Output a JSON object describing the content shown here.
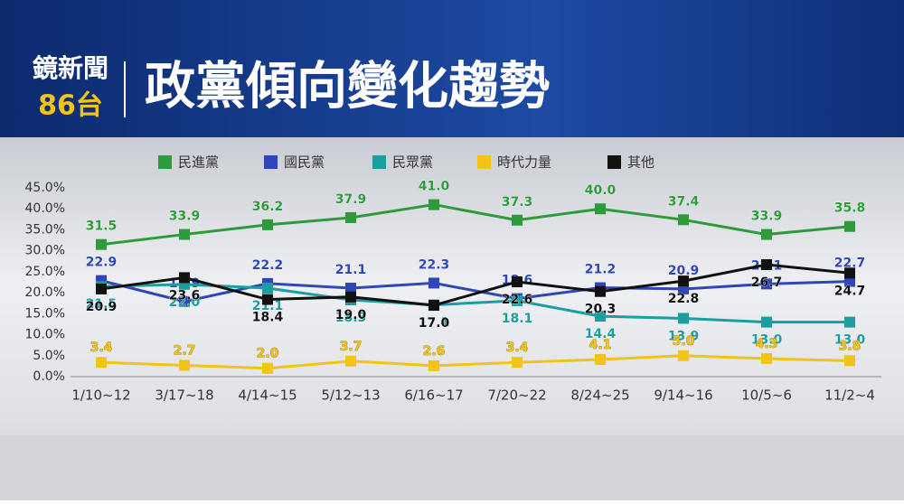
{
  "header": {
    "logo_line1": "鏡新聞",
    "logo_line2": "86台"
  },
  "chart_data": {
    "type": "line",
    "title": "政黨傾向變化趨勢",
    "categories": [
      "1/10~12",
      "3/17~18",
      "4/14~15",
      "5/12~13",
      "6/16~17",
      "7/20~22",
      "8/24~25",
      "9/14~16",
      "10/5~6",
      "11/2~4"
    ],
    "ylim": [
      0,
      45
    ],
    "yticks": [
      {
        "value": 0,
        "label": "0.0%"
      },
      {
        "value": 5,
        "label": "5.0%"
      },
      {
        "value": 10,
        "label": "10.0%"
      },
      {
        "value": 15,
        "label": "15.0%"
      },
      {
        "value": 20,
        "label": "20.0%"
      },
      {
        "value": 25,
        "label": "25.0%"
      },
      {
        "value": 30,
        "label": "30.0%"
      },
      {
        "value": 35,
        "label": "35.0%"
      },
      {
        "value": 40,
        "label": "40.0%"
      },
      {
        "value": 45,
        "label": "45.0%"
      }
    ],
    "series": [
      {
        "name": "民進黨",
        "color": "#2e9b3a",
        "values": [
          31.5,
          33.9,
          36.2,
          37.9,
          41.0,
          37.3,
          40.0,
          37.4,
          33.9,
          35.8
        ],
        "value_labels": [
          "31.5",
          "33.9",
          "36.2",
          "37.9",
          "41.0",
          "37.3",
          "40.0",
          "37.4",
          "33.9",
          "35.8"
        ]
      },
      {
        "name": "國民黨",
        "color": "#2f46b8",
        "values": [
          22.9,
          17.9,
          22.2,
          21.1,
          22.3,
          18.6,
          21.2,
          20.9,
          22.1,
          22.7
        ],
        "value_labels": [
          "22.9",
          "17.9",
          "22.2",
          "21.1",
          "22.3",
          "18.6",
          "21.2",
          "20.9",
          "22.1",
          "22.7"
        ]
      },
      {
        "name": "民眾黨",
        "color": "#1a9ea0",
        "values": [
          21.5,
          22.0,
          21.1,
          18.3,
          17.1,
          18.1,
          14.4,
          13.9,
          13.0,
          13.0
        ],
        "value_labels": [
          "21.5",
          "22.0",
          "21.1",
          "18.3",
          "17.1",
          "18.1",
          "14.4",
          "13.9",
          "13.0",
          "13.0"
        ]
      },
      {
        "name": "時代力量",
        "color": "#f2c418",
        "values": [
          3.4,
          2.7,
          2.0,
          3.7,
          2.6,
          3.4,
          4.1,
          5.0,
          4.3,
          3.8
        ],
        "value_labels": [
          "3.4",
          "2.7",
          "2.0",
          "3.7",
          "2.6",
          "3.4",
          "4.1",
          "5.0",
          "4.3",
          "3.8"
        ]
      },
      {
        "name": "其他",
        "color": "#111111",
        "values": [
          20.9,
          23.6,
          18.4,
          19.0,
          17.0,
          22.6,
          20.3,
          22.8,
          26.7,
          24.7
        ],
        "value_labels": [
          "20.9",
          "23.6",
          "18.4",
          "19.0",
          "17.0",
          "22.6",
          "20.3",
          "22.8",
          "26.7",
          "24.7"
        ]
      }
    ]
  }
}
